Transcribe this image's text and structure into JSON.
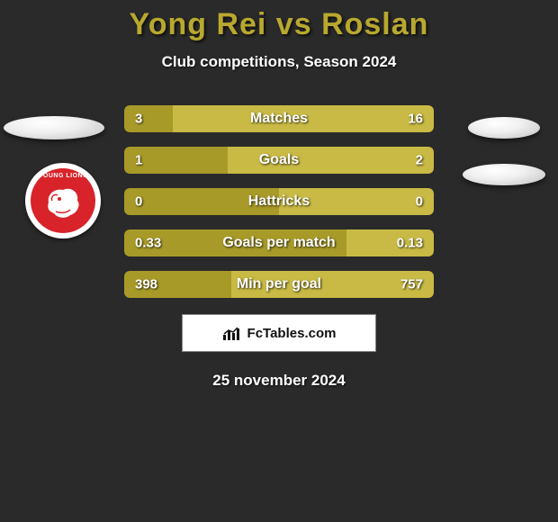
{
  "title_color": "#b8a82f",
  "text_color": "#ffffff",
  "background_color": "#2a2a2a",
  "title": "Yong Rei vs Roslan",
  "subtitle": "Club competitions, Season 2024",
  "crest": {
    "outer_color": "#ffffff",
    "inner_color": "#d8232a",
    "label": "YOUNG LIONS"
  },
  "bars": {
    "left_color": "#a89a28",
    "right_color": "#c8ba44",
    "height": 30,
    "gap": 16,
    "border_radius": 6,
    "rows": [
      {
        "label": "Matches",
        "left_val": "3",
        "right_val": "16",
        "left_pct": 15.8,
        "right_pct": 84.2
      },
      {
        "label": "Goals",
        "left_val": "1",
        "right_val": "2",
        "left_pct": 33.3,
        "right_pct": 66.7
      },
      {
        "label": "Hattricks",
        "left_val": "0",
        "right_val": "0",
        "left_pct": 50.0,
        "right_pct": 50.0
      },
      {
        "label": "Goals per match",
        "left_val": "0.33",
        "right_val": "0.13",
        "left_pct": 71.7,
        "right_pct": 28.3
      },
      {
        "label": "Min per goal",
        "left_val": "398",
        "right_val": "757",
        "left_pct": 34.5,
        "right_pct": 65.5
      }
    ]
  },
  "attribution": "FcTables.com",
  "date": "25 november 2024"
}
